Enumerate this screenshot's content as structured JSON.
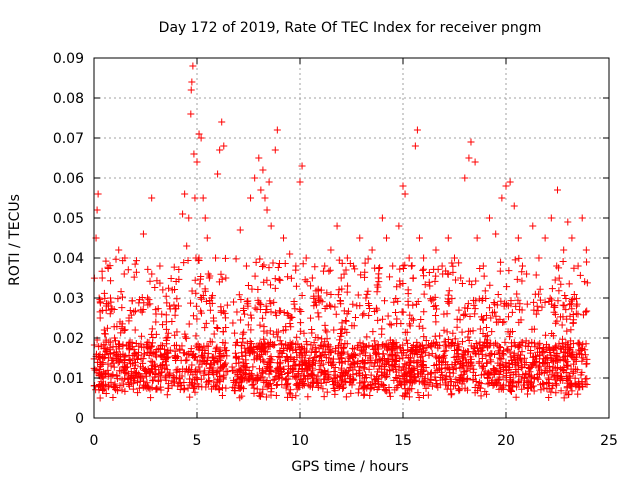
{
  "chart_data": {
    "type": "scatter",
    "title": "Day 172 of 2019, Rate Of TEC Index for receiver pngm",
    "xlabel": "GPS time / hours",
    "ylabel": "ROTI / TECUs",
    "xlim": [
      0,
      25
    ],
    "ylim": [
      0,
      0.09
    ],
    "xticks": [
      0,
      5,
      10,
      15,
      20,
      25
    ],
    "xtick_labels": [
      "0",
      "5",
      "10",
      "15",
      "20",
      "25"
    ],
    "yticks": [
      0,
      0.01,
      0.02,
      0.03,
      0.04,
      0.05,
      0.06,
      0.07,
      0.08,
      0.09
    ],
    "ytick_labels": [
      "0",
      "0.01",
      "0.02",
      "0.03",
      "0.04",
      "0.05",
      "0.06",
      "0.07",
      "0.08",
      "0.09"
    ],
    "grid": true,
    "marker": "+",
    "color": "#ff0000",
    "density_profile": {
      "hours_start": 0.0,
      "hours_end": 23.95,
      "typical_range": [
        0.005,
        0.03
      ],
      "gap_hours": [
        6.5,
        6.7
      ]
    },
    "series": [
      {
        "name": "ROTI",
        "x": [
          0.05,
          0.1,
          0.15,
          0.2,
          0.25,
          0.3,
          0.35,
          0.4,
          0.45,
          0.5,
          0.6,
          0.7,
          0.8,
          1.0,
          1.2,
          1.4,
          1.5,
          1.7,
          2.0,
          2.4,
          2.6,
          2.8,
          3.0,
          3.2,
          3.5,
          3.8,
          4.1,
          4.3,
          4.4,
          4.5,
          4.6,
          4.7,
          4.72,
          4.75,
          4.8,
          4.85,
          4.9,
          4.95,
          5.0,
          5.1,
          5.2,
          5.3,
          5.4,
          5.5,
          5.6,
          5.7,
          5.8,
          5.9,
          6.0,
          6.1,
          6.2,
          6.3,
          6.4,
          6.9,
          7.1,
          7.4,
          7.6,
          7.8,
          8.0,
          8.1,
          8.2,
          8.3,
          8.4,
          8.5,
          8.6,
          8.8,
          8.9,
          9.2,
          9.5,
          9.8,
          10.0,
          10.1,
          10.3,
          10.6,
          10.9,
          11.2,
          11.5,
          11.8,
          12.0,
          12.3,
          12.6,
          12.9,
          13.2,
          13.5,
          13.8,
          14.0,
          14.2,
          14.5,
          14.8,
          15.0,
          15.1,
          15.3,
          15.5,
          15.6,
          15.7,
          15.8,
          16.0,
          16.3,
          16.6,
          16.9,
          17.2,
          17.5,
          17.8,
          18.0,
          18.2,
          18.3,
          18.5,
          18.6,
          18.9,
          19.2,
          19.5,
          19.8,
          20.0,
          20.2,
          20.4,
          20.6,
          20.8,
          21.0,
          21.3,
          21.6,
          21.9,
          22.2,
          22.5,
          22.8,
          23.0,
          23.2,
          23.5,
          23.7,
          23.9
        ],
        "y": [
          0.012,
          0.045,
          0.052,
          0.056,
          0.03,
          0.025,
          0.018,
          0.035,
          0.01,
          0.022,
          0.028,
          0.015,
          0.03,
          0.02,
          0.042,
          0.018,
          0.04,
          0.025,
          0.022,
          0.046,
          0.03,
          0.055,
          0.024,
          0.038,
          0.02,
          0.032,
          0.028,
          0.051,
          0.056,
          0.043,
          0.05,
          0.076,
          0.082,
          0.084,
          0.088,
          0.066,
          0.055,
          0.04,
          0.064,
          0.071,
          0.07,
          0.055,
          0.05,
          0.045,
          0.035,
          0.03,
          0.025,
          0.04,
          0.061,
          0.067,
          0.074,
          0.068,
          0.035,
          0.015,
          0.047,
          0.038,
          0.055,
          0.06,
          0.065,
          0.057,
          0.062,
          0.055,
          0.052,
          0.059,
          0.048,
          0.067,
          0.072,
          0.045,
          0.041,
          0.038,
          0.059,
          0.063,
          0.04,
          0.035,
          0.03,
          0.038,
          0.042,
          0.048,
          0.035,
          0.04,
          0.038,
          0.045,
          0.03,
          0.042,
          0.035,
          0.05,
          0.045,
          0.038,
          0.048,
          0.058,
          0.056,
          0.04,
          0.035,
          0.068,
          0.072,
          0.045,
          0.04,
          0.033,
          0.042,
          0.038,
          0.045,
          0.04,
          0.035,
          0.06,
          0.065,
          0.069,
          0.064,
          0.045,
          0.038,
          0.05,
          0.046,
          0.055,
          0.058,
          0.059,
          0.053,
          0.045,
          0.038,
          0.036,
          0.048,
          0.04,
          0.045,
          0.05,
          0.057,
          0.042,
          0.049,
          0.045,
          0.038,
          0.05,
          0.042
        ]
      }
    ]
  }
}
